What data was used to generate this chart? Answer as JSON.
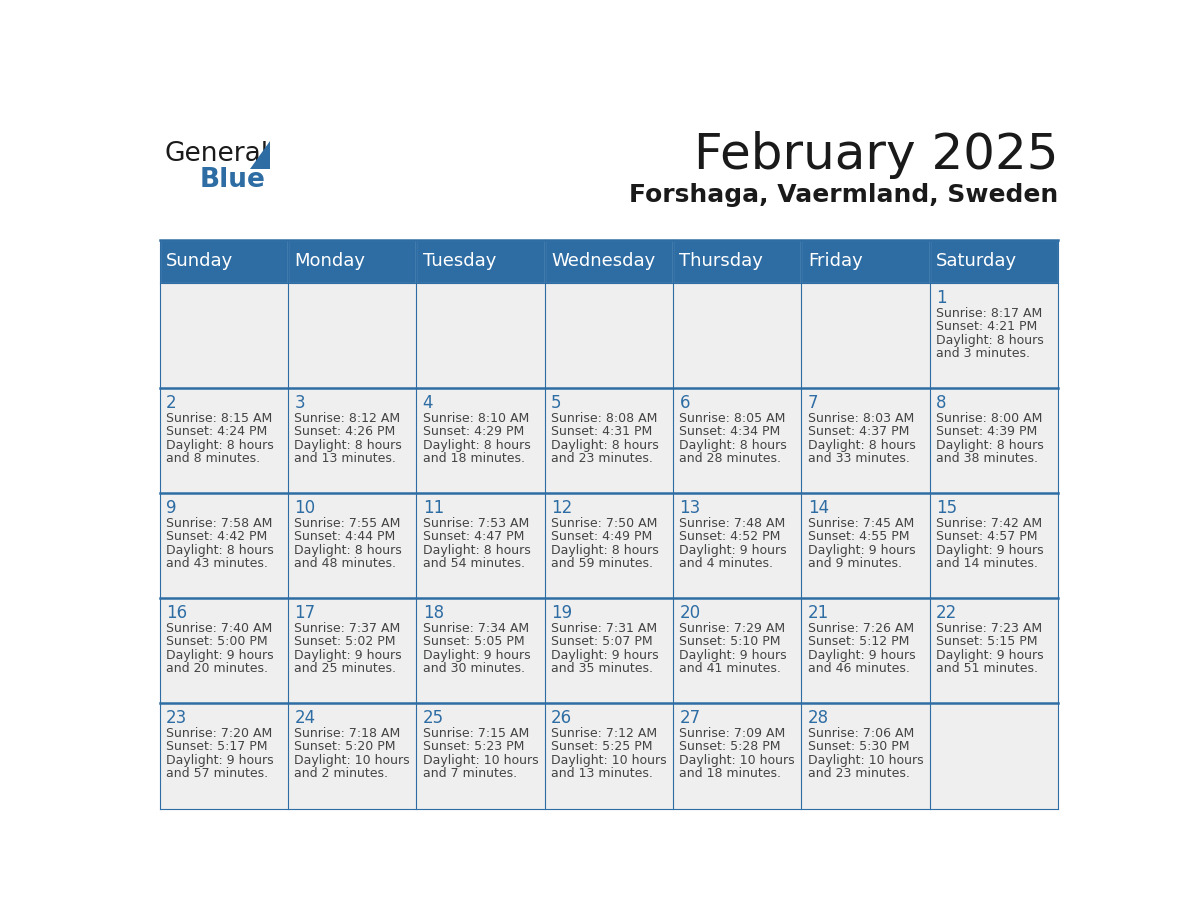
{
  "title": "February 2025",
  "subtitle": "Forshaga, Vaermland, Sweden",
  "header_bg": "#2E6DA4",
  "header_text_color": "#FFFFFF",
  "cell_bg_light": "#EFEFEF",
  "day_number_color": "#2E6DA4",
  "info_text_color": "#444444",
  "border_color": "#2E6DA4",
  "days_of_week": [
    "Sunday",
    "Monday",
    "Tuesday",
    "Wednesday",
    "Thursday",
    "Friday",
    "Saturday"
  ],
  "title_fontsize": 36,
  "subtitle_fontsize": 18,
  "header_fontsize": 13,
  "day_num_fontsize": 12,
  "info_fontsize": 9,
  "logo_text1": "General",
  "logo_text2": "Blue",
  "logo_color1": "#1a1a1a",
  "logo_color2": "#2E6DA4",
  "logo_triangle_color": "#2E6DA4",
  "weeks": [
    [
      {
        "day": null,
        "info": []
      },
      {
        "day": null,
        "info": []
      },
      {
        "day": null,
        "info": []
      },
      {
        "day": null,
        "info": []
      },
      {
        "day": null,
        "info": []
      },
      {
        "day": null,
        "info": []
      },
      {
        "day": 1,
        "info": [
          "Sunrise: 8:17 AM",
          "Sunset: 4:21 PM",
          "Daylight: 8 hours",
          "and 3 minutes."
        ]
      }
    ],
    [
      {
        "day": 2,
        "info": [
          "Sunrise: 8:15 AM",
          "Sunset: 4:24 PM",
          "Daylight: 8 hours",
          "and 8 minutes."
        ]
      },
      {
        "day": 3,
        "info": [
          "Sunrise: 8:12 AM",
          "Sunset: 4:26 PM",
          "Daylight: 8 hours",
          "and 13 minutes."
        ]
      },
      {
        "day": 4,
        "info": [
          "Sunrise: 8:10 AM",
          "Sunset: 4:29 PM",
          "Daylight: 8 hours",
          "and 18 minutes."
        ]
      },
      {
        "day": 5,
        "info": [
          "Sunrise: 8:08 AM",
          "Sunset: 4:31 PM",
          "Daylight: 8 hours",
          "and 23 minutes."
        ]
      },
      {
        "day": 6,
        "info": [
          "Sunrise: 8:05 AM",
          "Sunset: 4:34 PM",
          "Daylight: 8 hours",
          "and 28 minutes."
        ]
      },
      {
        "day": 7,
        "info": [
          "Sunrise: 8:03 AM",
          "Sunset: 4:37 PM",
          "Daylight: 8 hours",
          "and 33 minutes."
        ]
      },
      {
        "day": 8,
        "info": [
          "Sunrise: 8:00 AM",
          "Sunset: 4:39 PM",
          "Daylight: 8 hours",
          "and 38 minutes."
        ]
      }
    ],
    [
      {
        "day": 9,
        "info": [
          "Sunrise: 7:58 AM",
          "Sunset: 4:42 PM",
          "Daylight: 8 hours",
          "and 43 minutes."
        ]
      },
      {
        "day": 10,
        "info": [
          "Sunrise: 7:55 AM",
          "Sunset: 4:44 PM",
          "Daylight: 8 hours",
          "and 48 minutes."
        ]
      },
      {
        "day": 11,
        "info": [
          "Sunrise: 7:53 AM",
          "Sunset: 4:47 PM",
          "Daylight: 8 hours",
          "and 54 minutes."
        ]
      },
      {
        "day": 12,
        "info": [
          "Sunrise: 7:50 AM",
          "Sunset: 4:49 PM",
          "Daylight: 8 hours",
          "and 59 minutes."
        ]
      },
      {
        "day": 13,
        "info": [
          "Sunrise: 7:48 AM",
          "Sunset: 4:52 PM",
          "Daylight: 9 hours",
          "and 4 minutes."
        ]
      },
      {
        "day": 14,
        "info": [
          "Sunrise: 7:45 AM",
          "Sunset: 4:55 PM",
          "Daylight: 9 hours",
          "and 9 minutes."
        ]
      },
      {
        "day": 15,
        "info": [
          "Sunrise: 7:42 AM",
          "Sunset: 4:57 PM",
          "Daylight: 9 hours",
          "and 14 minutes."
        ]
      }
    ],
    [
      {
        "day": 16,
        "info": [
          "Sunrise: 7:40 AM",
          "Sunset: 5:00 PM",
          "Daylight: 9 hours",
          "and 20 minutes."
        ]
      },
      {
        "day": 17,
        "info": [
          "Sunrise: 7:37 AM",
          "Sunset: 5:02 PM",
          "Daylight: 9 hours",
          "and 25 minutes."
        ]
      },
      {
        "day": 18,
        "info": [
          "Sunrise: 7:34 AM",
          "Sunset: 5:05 PM",
          "Daylight: 9 hours",
          "and 30 minutes."
        ]
      },
      {
        "day": 19,
        "info": [
          "Sunrise: 7:31 AM",
          "Sunset: 5:07 PM",
          "Daylight: 9 hours",
          "and 35 minutes."
        ]
      },
      {
        "day": 20,
        "info": [
          "Sunrise: 7:29 AM",
          "Sunset: 5:10 PM",
          "Daylight: 9 hours",
          "and 41 minutes."
        ]
      },
      {
        "day": 21,
        "info": [
          "Sunrise: 7:26 AM",
          "Sunset: 5:12 PM",
          "Daylight: 9 hours",
          "and 46 minutes."
        ]
      },
      {
        "day": 22,
        "info": [
          "Sunrise: 7:23 AM",
          "Sunset: 5:15 PM",
          "Daylight: 9 hours",
          "and 51 minutes."
        ]
      }
    ],
    [
      {
        "day": 23,
        "info": [
          "Sunrise: 7:20 AM",
          "Sunset: 5:17 PM",
          "Daylight: 9 hours",
          "and 57 minutes."
        ]
      },
      {
        "day": 24,
        "info": [
          "Sunrise: 7:18 AM",
          "Sunset: 5:20 PM",
          "Daylight: 10 hours",
          "and 2 minutes."
        ]
      },
      {
        "day": 25,
        "info": [
          "Sunrise: 7:15 AM",
          "Sunset: 5:23 PM",
          "Daylight: 10 hours",
          "and 7 minutes."
        ]
      },
      {
        "day": 26,
        "info": [
          "Sunrise: 7:12 AM",
          "Sunset: 5:25 PM",
          "Daylight: 10 hours",
          "and 13 minutes."
        ]
      },
      {
        "day": 27,
        "info": [
          "Sunrise: 7:09 AM",
          "Sunset: 5:28 PM",
          "Daylight: 10 hours",
          "and 18 minutes."
        ]
      },
      {
        "day": 28,
        "info": [
          "Sunrise: 7:06 AM",
          "Sunset: 5:30 PM",
          "Daylight: 10 hours",
          "and 23 minutes."
        ]
      },
      {
        "day": null,
        "info": []
      }
    ]
  ]
}
